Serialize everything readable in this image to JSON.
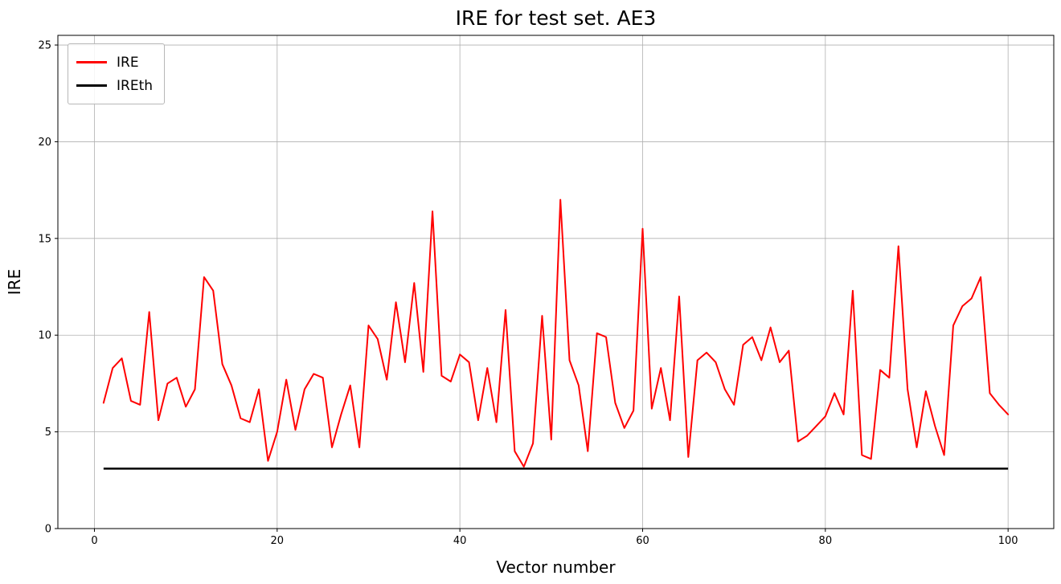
{
  "chart_data": {
    "type": "line",
    "title": "IRE for test set. AE3",
    "xlabel": "Vector number",
    "ylabel": "IRE",
    "xlim": [
      -4,
      105
    ],
    "ylim": [
      0,
      25.5
    ],
    "xticks": [
      0,
      20,
      40,
      60,
      80,
      100
    ],
    "yticks": [
      0,
      5,
      10,
      15,
      20,
      25
    ],
    "x_start": 1,
    "grid": true,
    "legend_position": "upper left",
    "series": [
      {
        "name": "IRE",
        "color": "#ff0000",
        "values": [
          6.5,
          8.3,
          8.8,
          6.6,
          6.4,
          11.2,
          5.6,
          7.5,
          7.8,
          6.3,
          7.2,
          13.0,
          12.3,
          8.5,
          7.4,
          5.7,
          5.5,
          7.2,
          3.5,
          5.0,
          7.7,
          5.1,
          7.2,
          8.0,
          7.8,
          4.2,
          5.9,
          7.4,
          4.2,
          10.5,
          9.8,
          7.7,
          11.7,
          8.6,
          12.7,
          8.1,
          16.4,
          7.9,
          7.6,
          9.0,
          8.6,
          5.6,
          8.3,
          5.5,
          11.3,
          4.0,
          3.2,
          4.4,
          11.0,
          4.6,
          17.0,
          8.7,
          7.4,
          4.0,
          10.1,
          9.9,
          6.5,
          5.2,
          6.1,
          15.5,
          6.2,
          8.3,
          5.6,
          12.0,
          3.7,
          8.7,
          9.1,
          8.6,
          7.2,
          6.4,
          9.5,
          9.9,
          8.7,
          10.4,
          8.6,
          9.2,
          4.5,
          4.8,
          5.3,
          5.8,
          7.0,
          5.9,
          12.3,
          3.8,
          3.6,
          8.2,
          7.8,
          14.6,
          7.2,
          4.2,
          7.1,
          5.3,
          3.8,
          10.5,
          11.5,
          11.9,
          13.0,
          7.0,
          6.4,
          5.9
        ]
      },
      {
        "name": "IREth",
        "color": "#000000",
        "constant": 3.1
      }
    ]
  }
}
